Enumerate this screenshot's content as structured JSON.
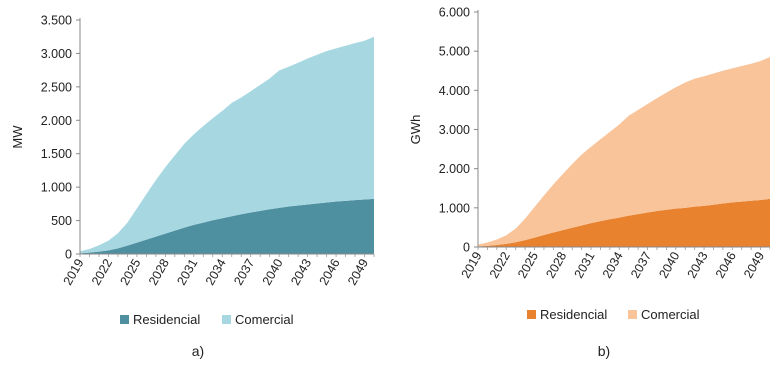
{
  "chart_data": [
    {
      "type": "area",
      "stacked": true,
      "panel_label": "a)",
      "ylabel": "MW",
      "ylim": [
        0,
        3500
      ],
      "yticks": [
        0,
        500,
        1000,
        1500,
        2000,
        2500,
        3000,
        3500
      ],
      "ytick_labels": [
        "0",
        "500",
        "1.000",
        "1.500",
        "2.000",
        "2.500",
        "3.000",
        "3.500"
      ],
      "xlim": [
        2019,
        2050
      ],
      "xticks": [
        "2019",
        "2022",
        "2025",
        "2028",
        "2031",
        "2034",
        "2037",
        "2040",
        "2043",
        "2046",
        "2049"
      ],
      "x": [
        2019,
        2020,
        2021,
        2022,
        2023,
        2024,
        2025,
        2026,
        2027,
        2028,
        2029,
        2030,
        2031,
        2032,
        2033,
        2034,
        2035,
        2036,
        2037,
        2038,
        2039,
        2040,
        2041,
        2042,
        2043,
        2044,
        2045,
        2046,
        2047,
        2048,
        2049,
        2050
      ],
      "legend_position": "bottom",
      "series": [
        {
          "name": "Residencial",
          "color": "#4e8fa0",
          "values": [
            10,
            20,
            35,
            55,
            85,
            125,
            170,
            215,
            260,
            305,
            350,
            395,
            435,
            470,
            505,
            535,
            565,
            595,
            620,
            645,
            670,
            690,
            710,
            725,
            740,
            755,
            770,
            785,
            795,
            805,
            815,
            825
          ]
        },
        {
          "name": "Comercial",
          "color": "#a7d8e2",
          "values": [
            30,
            55,
            95,
            145,
            225,
            345,
            510,
            680,
            845,
            995,
            1125,
            1255,
            1355,
            1445,
            1525,
            1605,
            1695,
            1745,
            1815,
            1885,
            1955,
            2055,
            2090,
            2135,
            2185,
            2225,
            2265,
            2290,
            2320,
            2350,
            2375,
            2425
          ]
        }
      ]
    },
    {
      "type": "area",
      "stacked": true,
      "panel_label": "b)",
      "ylabel": "GWh",
      "ylim": [
        0,
        6000
      ],
      "yticks": [
        0,
        1000,
        2000,
        3000,
        4000,
        5000,
        6000
      ],
      "ytick_labels": [
        "0",
        "1.000",
        "2.000",
        "3.000",
        "4.000",
        "5.000",
        "6.000"
      ],
      "xlim": [
        2019,
        2050
      ],
      "xticks": [
        "2019",
        "2022",
        "2025",
        "2028",
        "2031",
        "2034",
        "2037",
        "2040",
        "2043",
        "2046",
        "2049"
      ],
      "x": [
        2019,
        2020,
        2021,
        2022,
        2023,
        2024,
        2025,
        2026,
        2027,
        2028,
        2029,
        2030,
        2031,
        2032,
        2033,
        2034,
        2035,
        2036,
        2037,
        2038,
        2039,
        2040,
        2041,
        2042,
        2043,
        2044,
        2045,
        2046,
        2047,
        2048,
        2049,
        2050
      ],
      "legend_position": "bottom",
      "series": [
        {
          "name": "Residencial",
          "color": "#e8822e",
          "values": [
            15,
            30,
            50,
            80,
            120,
            175,
            240,
            305,
            370,
            430,
            490,
            550,
            610,
            660,
            710,
            750,
            800,
            840,
            880,
            920,
            950,
            980,
            1000,
            1030,
            1050,
            1080,
            1110,
            1140,
            1160,
            1180,
            1200,
            1230
          ]
        },
        {
          "name": "Comercial",
          "color": "#f9c49a",
          "values": [
            45,
            85,
            140,
            220,
            350,
            550,
            780,
            1010,
            1230,
            1430,
            1630,
            1810,
            1950,
            2090,
            2230,
            2380,
            2550,
            2660,
            2770,
            2880,
            2990,
            3100,
            3200,
            3270,
            3310,
            3350,
            3390,
            3420,
            3460,
            3500,
            3550,
            3620
          ]
        }
      ]
    }
  ]
}
